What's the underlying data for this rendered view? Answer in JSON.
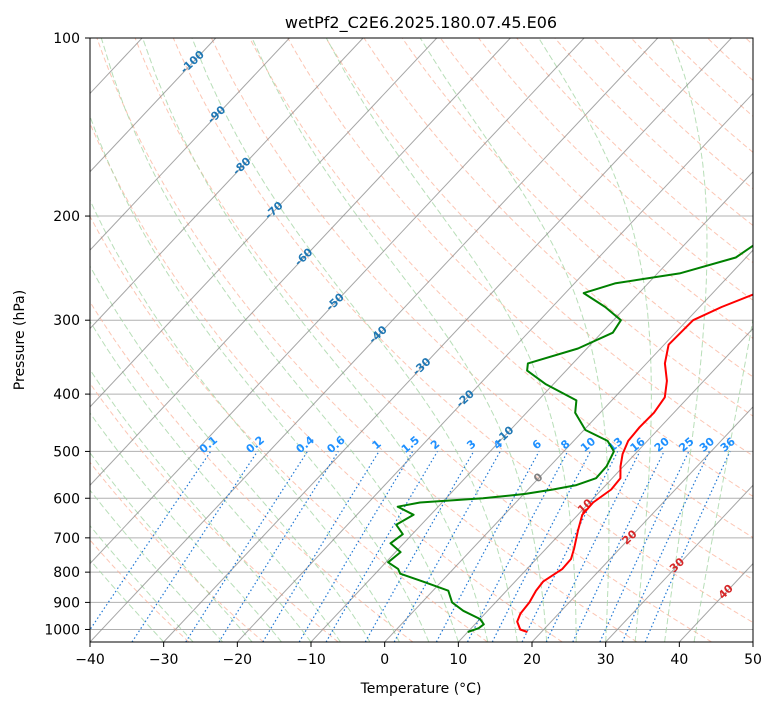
{
  "chart_data": {
    "type": "line",
    "title": "wetPf2_C2E6.2025.180.07.45.E06",
    "xlabel": "Temperature (°C)",
    "ylabel": "Pressure (hPa)",
    "xlim": [
      -40,
      50
    ],
    "ylim": [
      1050,
      100
    ],
    "y_scale": "log",
    "grid": true,
    "x_ticks": [
      "−40",
      "−30",
      "−20",
      "−10",
      "0",
      "10",
      "20",
      "30",
      "40",
      "50"
    ],
    "x_tick_values": [
      -40,
      -30,
      -20,
      -10,
      0,
      10,
      20,
      30,
      40,
      50
    ],
    "y_ticks": [
      "100",
      "200",
      "300",
      "400",
      "500",
      "600",
      "700",
      "800",
      "900",
      "1000"
    ],
    "y_tick_values": [
      100,
      200,
      300,
      400,
      500,
      600,
      700,
      800,
      900,
      1000
    ],
    "series": [
      {
        "color": "#ff0000",
        "points": [
          [
            18.1,
            1010
          ],
          [
            16.8,
            1000
          ],
          [
            15.4,
            970
          ],
          [
            14.8,
            940
          ],
          [
            14.6,
            900
          ],
          [
            14.0,
            860
          ],
          [
            13.8,
            830
          ],
          [
            14.8,
            790
          ],
          [
            14.7,
            760
          ],
          [
            13.8,
            730
          ],
          [
            12.0,
            680
          ],
          [
            10.6,
            640
          ],
          [
            10.5,
            610
          ],
          [
            11.3,
            580
          ],
          [
            11.1,
            555
          ],
          [
            9.6,
            530
          ],
          [
            8.3,
            505
          ],
          [
            7.4,
            480
          ],
          [
            7.2,
            455
          ],
          [
            7.3,
            430
          ],
          [
            6.8,
            405
          ],
          [
            5.0,
            380
          ],
          [
            2.5,
            355
          ],
          [
            0.6,
            330
          ],
          [
            0.8,
            300
          ],
          [
            3.0,
            285
          ],
          [
            6.0,
            270
          ],
          [
            7.2,
            255
          ],
          [
            7.3,
            240
          ],
          [
            5.2,
            220
          ],
          [
            2.5,
            200
          ],
          [
            1.0,
            185
          ],
          [
            0.5,
            170
          ],
          [
            0.7,
            160
          ],
          [
            4.0,
            150
          ],
          [
            10.6,
            140
          ],
          [
            14.0,
            132
          ],
          [
            14.3,
            124
          ],
          [
            13.8,
            118
          ],
          [
            14.3,
            112
          ],
          [
            16.0,
            107
          ],
          [
            18.6,
            100
          ]
        ]
      },
      {
        "color": "#008000",
        "points": [
          [
            10.0,
            1010
          ],
          [
            11.0,
            995
          ],
          [
            11.2,
            980
          ],
          [
            10.0,
            960
          ],
          [
            6.7,
            930
          ],
          [
            4.1,
            900
          ],
          [
            2.1,
            860
          ],
          [
            -2.5,
            830
          ],
          [
            -6.6,
            805
          ],
          [
            -7.5,
            790
          ],
          [
            -9.7,
            770
          ],
          [
            -9.3,
            740
          ],
          [
            -11.8,
            715
          ],
          [
            -11.3,
            690
          ],
          [
            -13.4,
            665
          ],
          [
            -12.3,
            640
          ],
          [
            -15.5,
            620
          ],
          [
            -13.0,
            610
          ],
          [
            -5.0,
            600
          ],
          [
            0.2,
            590
          ],
          [
            3.4,
            580
          ],
          [
            6.0,
            570
          ],
          [
            7.8,
            555
          ],
          [
            7.7,
            530
          ],
          [
            6.8,
            500
          ],
          [
            4.6,
            480
          ],
          [
            0.2,
            460
          ],
          [
            -3.4,
            430
          ],
          [
            -4.8,
            410
          ],
          [
            -11.0,
            385
          ],
          [
            -15.3,
            365
          ],
          [
            -16.1,
            355
          ],
          [
            -11.2,
            335
          ],
          [
            -8.5,
            315
          ],
          [
            -9.0,
            300
          ],
          [
            -12.8,
            285
          ],
          [
            -17.5,
            270
          ],
          [
            -14.5,
            260
          ],
          [
            -7.0,
            250
          ],
          [
            -1.4,
            235
          ],
          [
            -0.2,
            220
          ],
          [
            0.3,
            205
          ],
          [
            0.1,
            190
          ],
          [
            -3.5,
            175
          ],
          [
            -7.0,
            163
          ],
          [
            -8.0,
            152
          ],
          [
            -6.2,
            142
          ],
          [
            -4.3,
            135
          ],
          [
            -2.0,
            125
          ],
          [
            -0.8,
            115
          ],
          [
            0.6,
            106
          ],
          [
            1.5,
            100
          ]
        ]
      }
    ],
    "isotherm_labels": [
      {
        "text": "-100",
        "t": -100,
        "p": 110
      },
      {
        "text": "-90",
        "t": -90,
        "p": 135
      },
      {
        "text": "-80",
        "t": -80,
        "p": 165
      },
      {
        "text": "-70",
        "t": -70,
        "p": 196
      },
      {
        "text": "-60",
        "t": -60,
        "p": 235
      },
      {
        "text": "-50",
        "t": -50,
        "p": 280
      },
      {
        "text": "-40",
        "t": -40,
        "p": 318
      },
      {
        "text": "-30",
        "t": -30,
        "p": 360
      },
      {
        "text": "-20",
        "t": -20,
        "p": 408
      },
      {
        "text": "-10",
        "t": -10,
        "p": 470
      },
      {
        "text": "0",
        "t": 0,
        "p": 555
      },
      {
        "text": "10",
        "t": 10,
        "p": 620
      },
      {
        "text": "20",
        "t": 20,
        "p": 700
      },
      {
        "text": "30",
        "t": 30,
        "p": 780
      },
      {
        "text": "40",
        "t": 40,
        "p": 865
      }
    ],
    "mixing_ratio_labels": [
      "0.1",
      "0.2",
      "0.4",
      "0.6",
      "1",
      "1.5",
      "2",
      "3",
      "4",
      "6",
      "8",
      "10",
      "13",
      "16",
      "20",
      "25",
      "30",
      "36"
    ],
    "mixing_ratio_values": [
      0.1,
      0.2,
      0.4,
      0.6,
      1,
      1.5,
      2,
      3,
      4,
      6,
      8,
      10,
      13,
      16,
      20,
      25,
      30,
      36
    ],
    "colors": {
      "temperature": "#ff0000",
      "dewpoint": "#008000",
      "dry_adiabat": "#fbb39b",
      "moist_adiabat": "#a6d6a6",
      "mixing_ratio": "#1f77d4",
      "isotherm": "#888888",
      "label_cold": "#1f77b4",
      "label_zero": "#7f7f7f",
      "label_warm": "#d62728",
      "mixing_label": "#1e90ff"
    }
  }
}
